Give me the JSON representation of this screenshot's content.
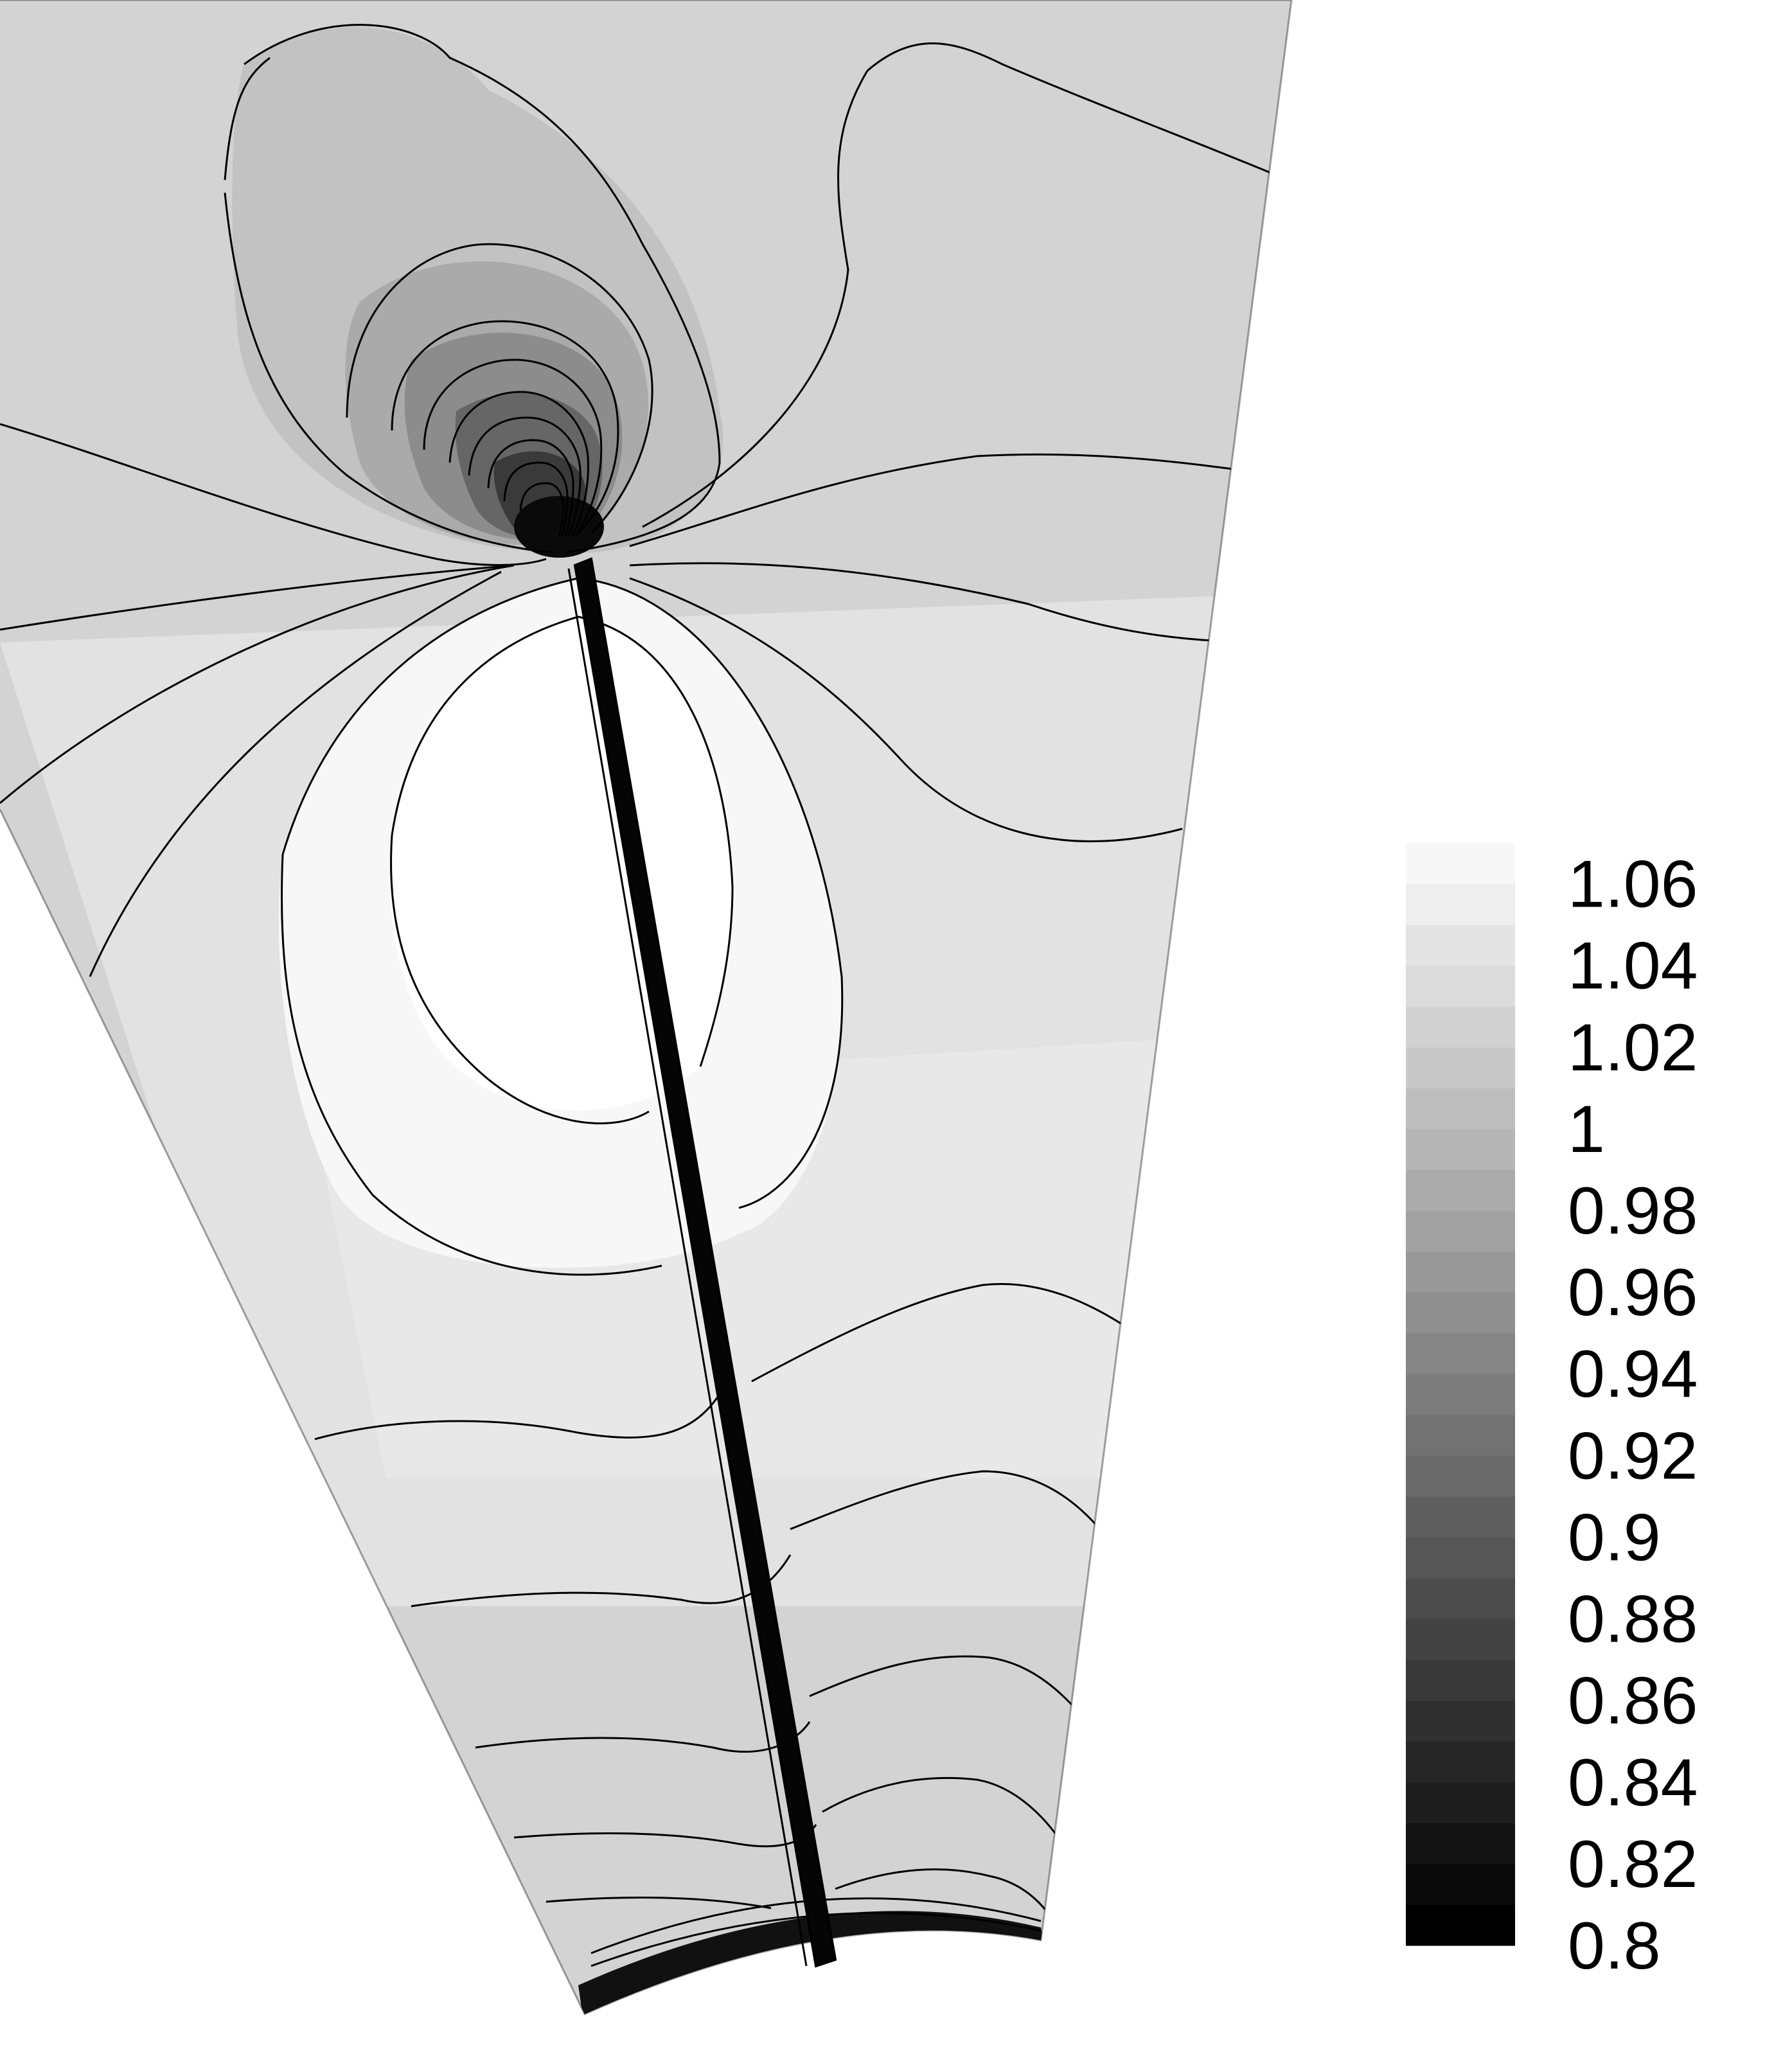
{
  "chart_data": {
    "type": "heatmap",
    "title": "",
    "xlabel": "",
    "ylabel": "",
    "colorbar": {
      "min": 0.8,
      "max": 1.07,
      "step": 0.01,
      "color_low": "#000000",
      "color_high": "#ffffff",
      "ticks": [
        1.06,
        1.04,
        1.02,
        1,
        0.98,
        0.96,
        0.94,
        0.92,
        0.9,
        0.88,
        0.86,
        0.84,
        0.82,
        0.8
      ],
      "tick_labels": [
        "1.06",
        "1.04",
        "1.02",
        "1",
        "0.98",
        "0.96",
        "0.94",
        "0.92",
        "0.9",
        "0.88",
        "0.86",
        "0.84",
        "0.82",
        "0.8"
      ]
    },
    "field": {
      "far_field_level": 1.0,
      "high_region_level": 1.06,
      "low_core_level": 0.8,
      "contour_color": "#000000",
      "grid": false
    }
  }
}
